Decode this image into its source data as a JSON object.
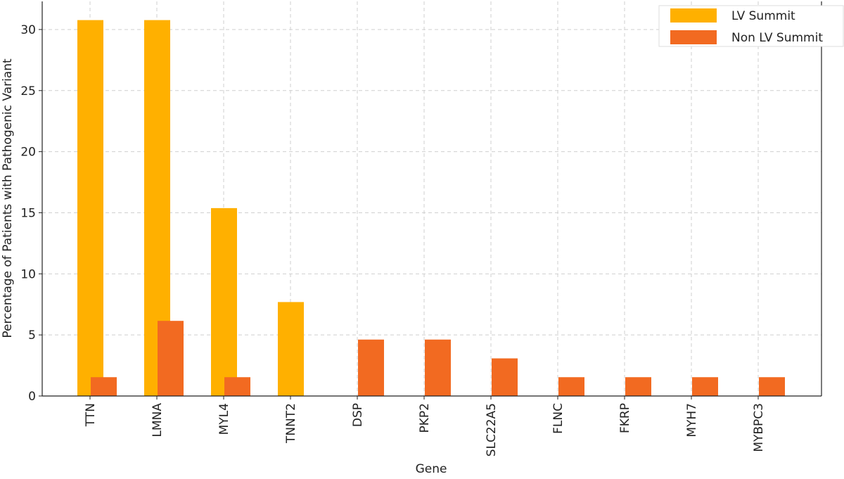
{
  "chart_data": {
    "type": "bar",
    "x_label": "Gene",
    "y_label": "Percentage of Patients with Pathogenic Variant",
    "categories": [
      "TTN",
      "LMNA",
      "MYL4",
      "TNNT2",
      "DSP",
      "PKP2",
      "SLC22A5",
      "FLNC",
      "FKRP",
      "MYH7",
      "MYBPC3"
    ],
    "series": [
      {
        "name": "LV Summit",
        "color": "#ffb000",
        "values": [
          30.77,
          30.77,
          15.38,
          7.69,
          0,
          0,
          0,
          0,
          0,
          0,
          0
        ]
      },
      {
        "name": "Non LV Summit",
        "color": "#f26a21",
        "values": [
          1.54,
          6.15,
          1.54,
          0,
          4.62,
          4.62,
          3.08,
          1.54,
          1.54,
          1.54,
          1.54
        ]
      }
    ],
    "ylim": [
      0,
      32.3
    ],
    "yticks": [
      0,
      5,
      10,
      15,
      20,
      25,
      30
    ],
    "grid": true,
    "legend": "upper right"
  }
}
